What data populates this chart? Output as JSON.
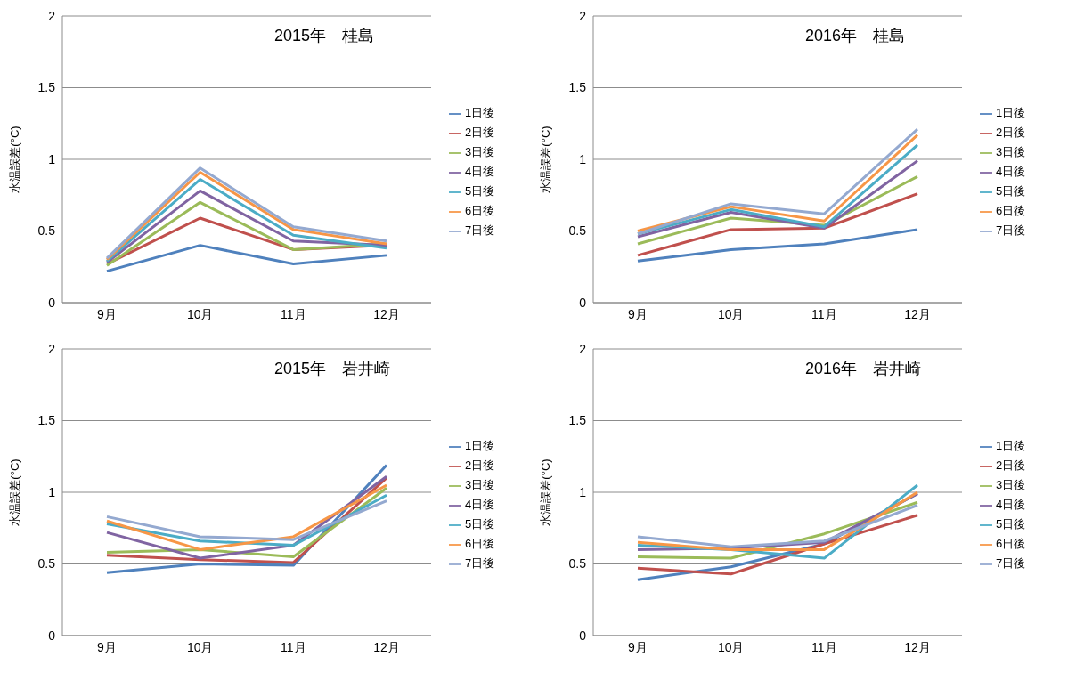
{
  "chart_data": [
    {
      "type": "line",
      "title": "2015年　桂島",
      "ylabel": "水温誤差(°C)",
      "categories": [
        "9月",
        "10月",
        "11月",
        "12月"
      ],
      "ylim": [
        0,
        2
      ],
      "yticks": [
        0,
        0.5,
        1,
        1.5,
        2
      ],
      "grid": "y",
      "legend": "right",
      "marker": "none",
      "series": [
        {
          "name": "1日後",
          "color": "#4f81bd",
          "values": [
            0.22,
            0.4,
            0.27,
            0.33
          ]
        },
        {
          "name": "2日後",
          "color": "#c0504d",
          "values": [
            0.27,
            0.59,
            0.37,
            0.4
          ]
        },
        {
          "name": "3日後",
          "color": "#9bbb59",
          "values": [
            0.26,
            0.7,
            0.37,
            0.41
          ]
        },
        {
          "name": "4日後",
          "color": "#8064a2",
          "values": [
            0.28,
            0.78,
            0.43,
            0.4
          ]
        },
        {
          "name": "5日後",
          "color": "#4bacc6",
          "values": [
            0.29,
            0.86,
            0.47,
            0.38
          ]
        },
        {
          "name": "6日後",
          "color": "#f79646",
          "values": [
            0.3,
            0.91,
            0.51,
            0.41
          ]
        },
        {
          "name": "7日後",
          "color": "#94a9d0",
          "values": [
            0.31,
            0.94,
            0.53,
            0.43
          ]
        }
      ]
    },
    {
      "type": "line",
      "title": "2016年　桂島",
      "ylabel": "水温誤差(°C)",
      "categories": [
        "9月",
        "10月",
        "11月",
        "12月"
      ],
      "ylim": [
        0,
        2
      ],
      "yticks": [
        0,
        0.5,
        1,
        1.5,
        2
      ],
      "grid": "y",
      "legend": "right",
      "marker": "none",
      "series": [
        {
          "name": "1日後",
          "color": "#4f81bd",
          "values": [
            0.29,
            0.37,
            0.41,
            0.51
          ]
        },
        {
          "name": "2日後",
          "color": "#c0504d",
          "values": [
            0.33,
            0.51,
            0.52,
            0.76
          ]
        },
        {
          "name": "3日後",
          "color": "#9bbb59",
          "values": [
            0.41,
            0.59,
            0.54,
            0.88
          ]
        },
        {
          "name": "4日後",
          "color": "#8064a2",
          "values": [
            0.46,
            0.63,
            0.52,
            0.99
          ]
        },
        {
          "name": "5日後",
          "color": "#4bacc6",
          "values": [
            0.48,
            0.65,
            0.53,
            1.1
          ]
        },
        {
          "name": "6日後",
          "color": "#f79646",
          "values": [
            0.5,
            0.67,
            0.57,
            1.17
          ]
        },
        {
          "name": "7日後",
          "color": "#94a9d0",
          "values": [
            0.48,
            0.69,
            0.62,
            1.21
          ]
        }
      ]
    },
    {
      "type": "line",
      "title": "2015年　岩井崎",
      "ylabel": "水温誤差(°C)",
      "categories": [
        "9月",
        "10月",
        "11月",
        "12月"
      ],
      "ylim": [
        0,
        2
      ],
      "yticks": [
        0,
        0.5,
        1,
        1.5,
        2
      ],
      "grid": "y",
      "legend": "right",
      "marker": "none",
      "series": [
        {
          "name": "1日後",
          "color": "#4f81bd",
          "values": [
            0.44,
            0.5,
            0.49,
            1.19
          ]
        },
        {
          "name": "2日後",
          "color": "#c0504d",
          "values": [
            0.56,
            0.53,
            0.51,
            1.1
          ]
        },
        {
          "name": "3日後",
          "color": "#9bbb59",
          "values": [
            0.58,
            0.6,
            0.55,
            1.03
          ]
        },
        {
          "name": "4日後",
          "color": "#8064a2",
          "values": [
            0.72,
            0.54,
            0.63,
            1.11
          ]
        },
        {
          "name": "5日後",
          "color": "#4bacc6",
          "values": [
            0.78,
            0.66,
            0.63,
            0.98
          ]
        },
        {
          "name": "6日後",
          "color": "#f79646",
          "values": [
            0.8,
            0.6,
            0.69,
            1.05
          ]
        },
        {
          "name": "7日後",
          "color": "#94a9d0",
          "values": [
            0.83,
            0.69,
            0.67,
            0.94
          ]
        }
      ]
    },
    {
      "type": "line",
      "title": "2016年　岩井崎",
      "ylabel": "水温誤差(°C)",
      "categories": [
        "9月",
        "10月",
        "11月",
        "12月"
      ],
      "ylim": [
        0,
        2
      ],
      "yticks": [
        0,
        0.5,
        1,
        1.5,
        2
      ],
      "grid": "y",
      "legend": "right",
      "marker": "none",
      "series": [
        {
          "name": "1日後",
          "color": "#4f81bd",
          "values": [
            0.39,
            0.48,
            0.64,
            0.99
          ]
        },
        {
          "name": "2日後",
          "color": "#c0504d",
          "values": [
            0.47,
            0.43,
            0.64,
            0.84
          ]
        },
        {
          "name": "3日後",
          "color": "#9bbb59",
          "values": [
            0.55,
            0.54,
            0.71,
            0.93
          ]
        },
        {
          "name": "4日後",
          "color": "#8064a2",
          "values": [
            0.6,
            0.61,
            0.65,
            0.99
          ]
        },
        {
          "name": "5日後",
          "color": "#4bacc6",
          "values": [
            0.63,
            0.6,
            0.54,
            1.05
          ]
        },
        {
          "name": "6日後",
          "color": "#f79646",
          "values": [
            0.65,
            0.6,
            0.6,
            1.0
          ]
        },
        {
          "name": "7日後",
          "color": "#94a9d0",
          "values": [
            0.69,
            0.62,
            0.66,
            0.91
          ]
        }
      ]
    }
  ]
}
